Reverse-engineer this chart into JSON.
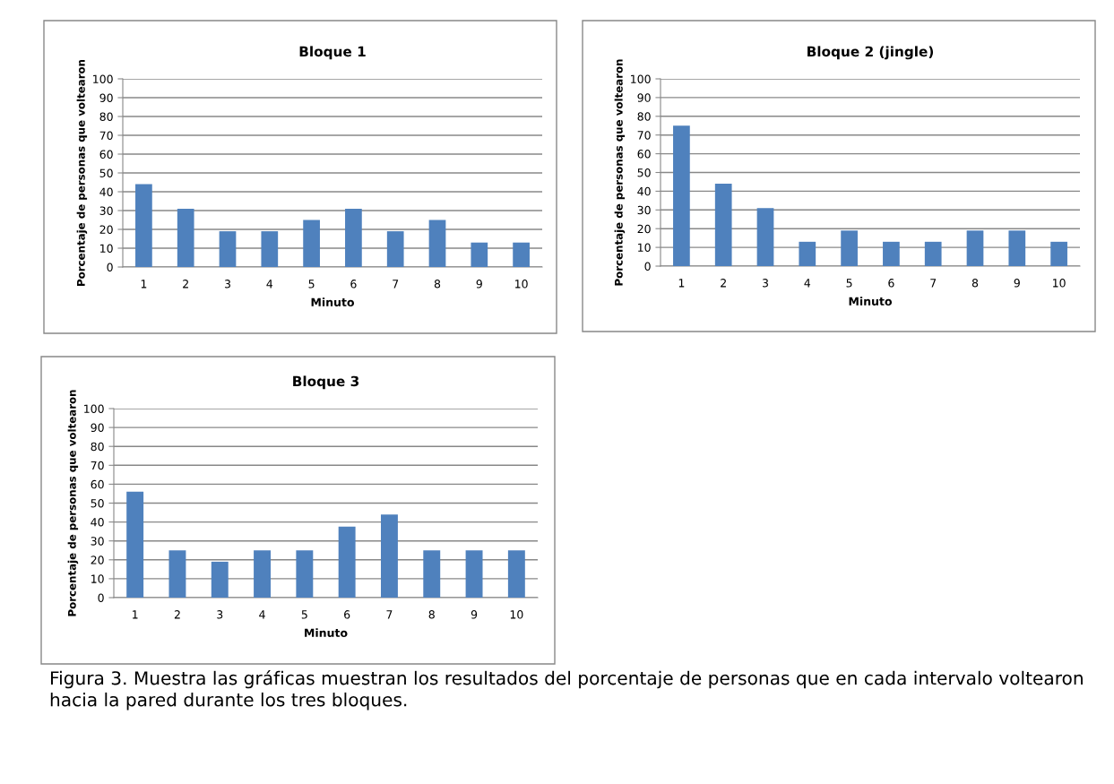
{
  "chart_data": [
    {
      "type": "bar",
      "title": "Bloque 1",
      "xlabel": "Minuto",
      "ylabel": "Porcentaje de personas que voltearon",
      "categories": [
        "1",
        "2",
        "3",
        "4",
        "5",
        "6",
        "7",
        "8",
        "9",
        "10"
      ],
      "values": [
        44,
        31,
        19,
        19,
        25,
        31,
        19,
        25,
        13,
        13
      ],
      "color": "#4f81bd",
      "ylim": [
        0,
        100
      ],
      "yticks": [
        0,
        10,
        20,
        30,
        40,
        50,
        60,
        70,
        80,
        90,
        100
      ],
      "grid": "y"
    },
    {
      "type": "bar",
      "title": "Bloque 2 (jingle)",
      "xlabel": "Minuto",
      "ylabel": "Porcentaje de personas que voltearon",
      "categories": [
        "1",
        "2",
        "3",
        "4",
        "5",
        "6",
        "7",
        "8",
        "9",
        "10"
      ],
      "values": [
        75,
        44,
        31,
        13,
        19,
        13,
        13,
        19,
        19,
        13
      ],
      "color": "#4f81bd",
      "ylim": [
        0,
        100
      ],
      "yticks": [
        0,
        10,
        20,
        30,
        40,
        50,
        60,
        70,
        80,
        90,
        100
      ],
      "grid": "y"
    },
    {
      "type": "bar",
      "title": "Bloque 3",
      "xlabel": "Minuto",
      "ylabel": "Porcentaje de personas que voltearon",
      "categories": [
        "1",
        "2",
        "3",
        "4",
        "5",
        "6",
        "7",
        "8",
        "9",
        "10"
      ],
      "values": [
        56,
        25,
        19,
        25,
        25,
        37.5,
        44,
        25,
        25,
        25
      ],
      "color": "#4f81bd",
      "ylim": [
        0,
        100
      ],
      "yticks": [
        0,
        10,
        20,
        30,
        40,
        50,
        60,
        70,
        80,
        90,
        100
      ],
      "grid": "y",
      "annotations": [
        "Figura 3. Muestra las gráficas muestran los resultados del porcentaje de personas que en cada intervalo voltearon hacia la pared durante los tres bloques."
      ]
    }
  ]
}
